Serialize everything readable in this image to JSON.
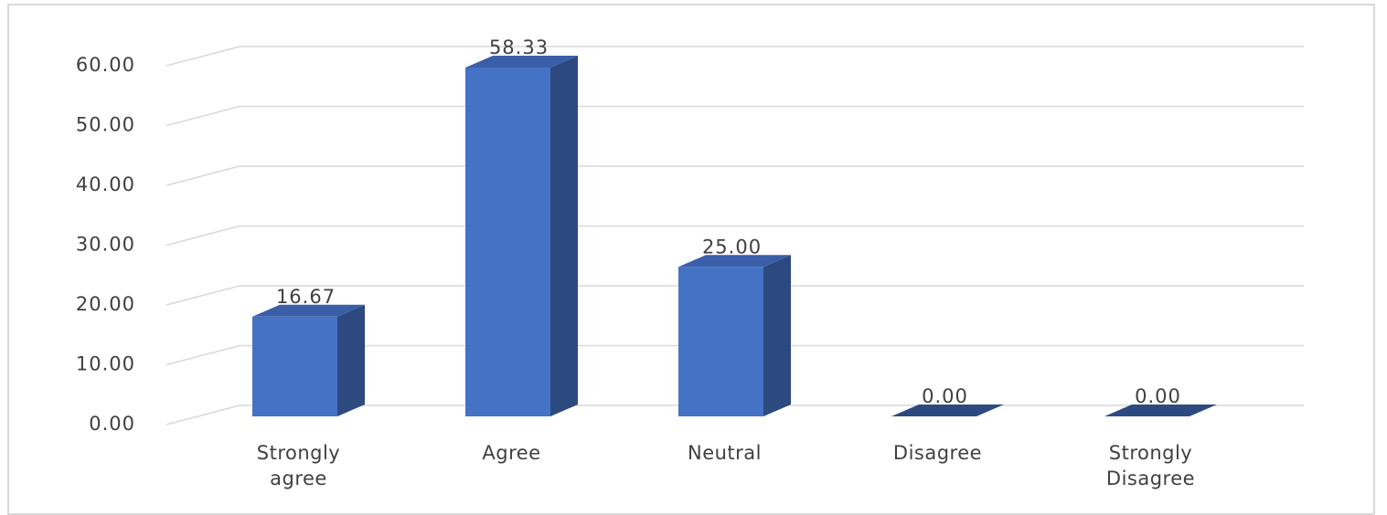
{
  "chart_data": {
    "type": "bar",
    "style": "3d-column",
    "categories": [
      [
        "Strongly",
        "agree"
      ],
      [
        "Agree"
      ],
      [
        "Neutral"
      ],
      [
        "Disagree"
      ],
      [
        "Strongly",
        "Disagree"
      ]
    ],
    "values": [
      16.67,
      58.33,
      25.0,
      0.0,
      0.0
    ],
    "data_labels": [
      "16.67",
      "58.33",
      "25.00",
      "0.00",
      "0.00"
    ],
    "y_ticks": [
      "0.00",
      "10.00",
      "20.00",
      "30.00",
      "40.00",
      "50.00",
      "60.00"
    ],
    "ylim": [
      0,
      60
    ],
    "grid": true,
    "legend": false,
    "title": "",
    "xlabel": "",
    "ylabel": "",
    "colors": {
      "front": "#4472c4",
      "side": "#2c4a80",
      "top": "#3a5fa8",
      "grid": "#d9d9d9",
      "text": "#404040"
    }
  }
}
